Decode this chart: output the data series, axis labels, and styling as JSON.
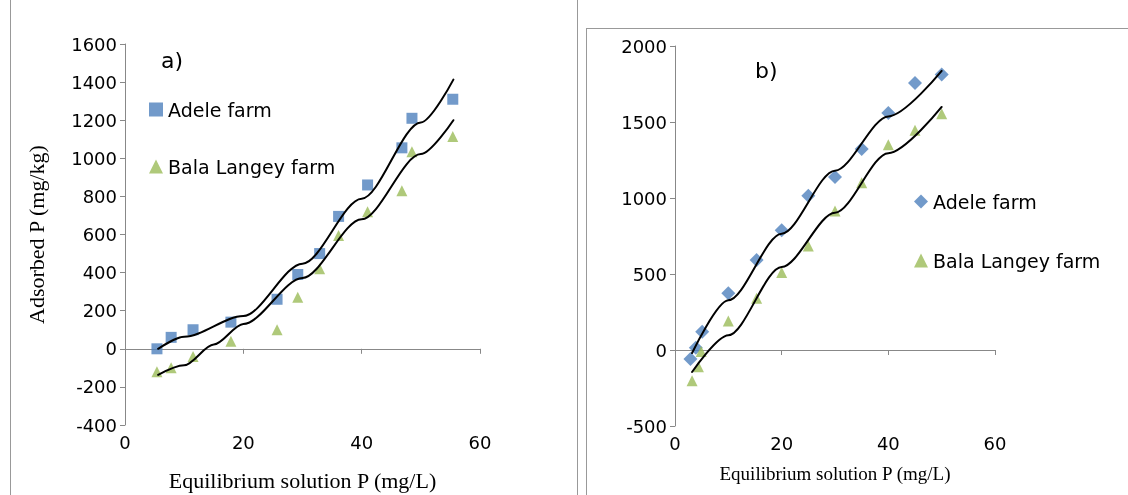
{
  "chart_data": [
    {
      "type": "scatter",
      "annotations": [
        "a)"
      ],
      "xlabel": "Equilibrium solution P (mg/L)",
      "ylabel": "Adsorbed P (mg/kg)",
      "xlim": [
        0,
        60
      ],
      "xticks": [
        0,
        20,
        40,
        60
      ],
      "ylim": [
        -400,
        1600
      ],
      "yticks": [
        -400,
        -200,
        0,
        200,
        400,
        600,
        800,
        1000,
        1200,
        1400,
        1600
      ],
      "legend": "top left",
      "series": [
        {
          "name": "Adele farm",
          "color": "#4f81bd",
          "marker": "square",
          "x": [
            5.4,
            7.8,
            11.5,
            17.9,
            25.7,
            29.2,
            32.9,
            36.1,
            41,
            46.8,
            48.5,
            55.4
          ],
          "values": [
            0,
            60,
            100,
            140,
            260,
            390,
            500,
            695,
            860,
            1055,
            1210,
            1310
          ]
        },
        {
          "name": "Bala Langey farm",
          "color": "#9bbb59",
          "marker": "triangle",
          "x": [
            5.4,
            7.8,
            11.5,
            17.9,
            25.7,
            29.2,
            32.9,
            36.1,
            41,
            46.8,
            48.5,
            55.4
          ],
          "values": [
            -120,
            -100,
            -40,
            40,
            100,
            270,
            420,
            595,
            720,
            830,
            1035,
            1115
          ]
        },
        {
          "type": "line",
          "color": "#000000",
          "marker": "none",
          "x": [
            5.6,
            10,
            20,
            30,
            40,
            50,
            55.5
          ],
          "values": [
            0,
            63,
            172,
            447,
            788,
            1188,
            1413
          ]
        },
        {
          "type": "line",
          "color": "#000000",
          "marker": "none",
          "x": [
            5.6,
            10,
            15,
            20,
            30,
            40,
            50,
            55.5
          ],
          "values": [
            -137,
            -87,
            22,
            130,
            372,
            680,
            1022,
            1200
          ]
        }
      ]
    },
    {
      "type": "scatter",
      "annotations": [
        "b)"
      ],
      "xlabel": "Equilibrium solution P (mg/L)",
      "xlim": [
        0,
        60
      ],
      "xticks": [
        0,
        20,
        40,
        60
      ],
      "ylim": [
        -500,
        2000
      ],
      "yticks": [
        -500,
        0,
        500,
        1000,
        1500,
        2000
      ],
      "legend": "right",
      "series": [
        {
          "name": "Adele farm",
          "color": "#4f81bd",
          "marker": "diamond",
          "x": [
            2.9,
            3.9,
            5.1,
            10,
            15.3,
            20,
            25,
            30,
            35,
            40,
            45,
            50
          ],
          "values": [
            -60,
            15,
            120,
            373,
            592,
            788,
            1014,
            1138,
            1323,
            1560,
            1756,
            1813
          ]
        },
        {
          "name": "Bala Langey farm",
          "color": "#9bbb59",
          "marker": "triangle",
          "x": [
            3.2,
            4.4,
            4.9,
            10,
            15.3,
            20,
            25,
            30,
            35,
            40,
            45,
            50
          ],
          "values": [
            -203,
            -110,
            -10,
            190,
            340,
            510,
            685,
            915,
            1100,
            1350,
            1445,
            1555
          ]
        },
        {
          "type": "line",
          "color": "#000000",
          "marker": "none",
          "x": [
            3.2,
            10,
            20,
            30,
            40,
            50
          ],
          "values": [
            -20,
            327,
            765,
            1180,
            1537,
            1836
          ]
        },
        {
          "type": "line",
          "color": "#000000",
          "marker": "none",
          "x": [
            3.2,
            10,
            20,
            30,
            40,
            50
          ],
          "values": [
            -145,
            97,
            546,
            903,
            1295,
            1599
          ]
        }
      ]
    }
  ]
}
